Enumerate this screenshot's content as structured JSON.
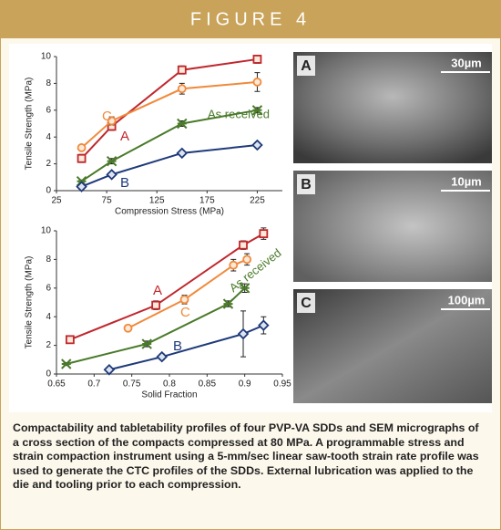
{
  "figure_title": "FIGURE 4",
  "chart_data": [
    {
      "type": "line",
      "xlabel": "Compression Stress (MPa)",
      "ylabel": "Tensile Strength (MPa)",
      "xlim": [
        25,
        250
      ],
      "xticks": [
        25,
        75,
        125,
        175,
        225
      ],
      "ylim": [
        0,
        10
      ],
      "yticks": [
        0,
        2,
        4,
        6,
        8,
        10
      ],
      "series": [
        {
          "name": "A",
          "color": "#c0272d",
          "marker": "square",
          "x": [
            50,
            80,
            150,
            225
          ],
          "values": [
            2.4,
            4.8,
            9.0,
            9.8
          ],
          "errors": [
            0.3,
            0.3,
            0.3,
            0.3
          ]
        },
        {
          "name": "C",
          "color": "#f08a3c",
          "marker": "circle",
          "x": [
            50,
            80,
            150,
            225
          ],
          "values": [
            3.2,
            5.2,
            7.6,
            8.1
          ],
          "errors": [
            0.2,
            0.3,
            0.4,
            0.7
          ]
        },
        {
          "name": "As received",
          "color": "#4a7a2a",
          "marker": "x",
          "x": [
            50,
            80,
            150,
            225
          ],
          "values": [
            0.7,
            2.2,
            5.0,
            6.0
          ],
          "errors": [
            0.1,
            0.2,
            0.2,
            0.2
          ]
        },
        {
          "name": "B",
          "color": "#1f3a7a",
          "marker": "diamond",
          "x": [
            50,
            80,
            150,
            225
          ],
          "values": [
            0.3,
            1.2,
            2.8,
            3.4
          ],
          "errors": [
            0.1,
            0.1,
            0.1,
            0.2
          ]
        }
      ]
    },
    {
      "type": "line",
      "xlabel": "Solid Fraction",
      "ylabel": "Tensile Strength (MPa)",
      "xlim": [
        0.65,
        0.95
      ],
      "xticks": [
        0.65,
        0.7,
        0.75,
        0.8,
        0.85,
        0.9,
        0.95
      ],
      "ylim": [
        0,
        10
      ],
      "yticks": [
        0,
        2,
        4,
        6,
        8,
        10
      ],
      "series": [
        {
          "name": "A",
          "color": "#c0272d",
          "marker": "square",
          "x": [
            0.668,
            0.782,
            0.898,
            0.925
          ],
          "values": [
            2.4,
            4.8,
            9.0,
            9.8
          ],
          "errors": [
            0.2,
            0.3,
            0.3,
            0.4
          ]
        },
        {
          "name": "C",
          "color": "#f08a3c",
          "marker": "circle",
          "x": [
            0.745,
            0.82,
            0.885,
            0.903
          ],
          "values": [
            3.2,
            5.2,
            7.6,
            8.0
          ],
          "errors": [
            0.2,
            0.3,
            0.4,
            0.4
          ]
        },
        {
          "name": "As received",
          "color": "#4a7a2a",
          "marker": "x",
          "x": [
            0.663,
            0.77,
            0.878,
            0.9
          ],
          "values": [
            0.7,
            2.1,
            4.9,
            6.0
          ],
          "errors": [
            0.1,
            0.2,
            0.2,
            0.3
          ]
        },
        {
          "name": "B",
          "color": "#1f3a7a",
          "marker": "diamond",
          "x": [
            0.72,
            0.79,
            0.898,
            0.925
          ],
          "values": [
            0.3,
            1.2,
            2.8,
            3.4
          ],
          "errors": [
            0.1,
            0.2,
            1.6,
            0.6
          ]
        }
      ]
    }
  ],
  "micrographs": [
    {
      "label": "A",
      "scale": "30µm"
    },
    {
      "label": "B",
      "scale": "10µm"
    },
    {
      "label": "C",
      "scale": "100µm"
    }
  ],
  "caption": "Compactability and tabletability profiles of four PVP-VA SDDs and SEM micrographs of a cross section of the compacts compressed at 80 MPa. A programmable stress and strain compaction instrument using a 5-mm/sec linear saw-tooth strain rate profile was used to generate the CTC profiles of the SDDs. External lubrication was applied to the die and tooling prior to each compression."
}
